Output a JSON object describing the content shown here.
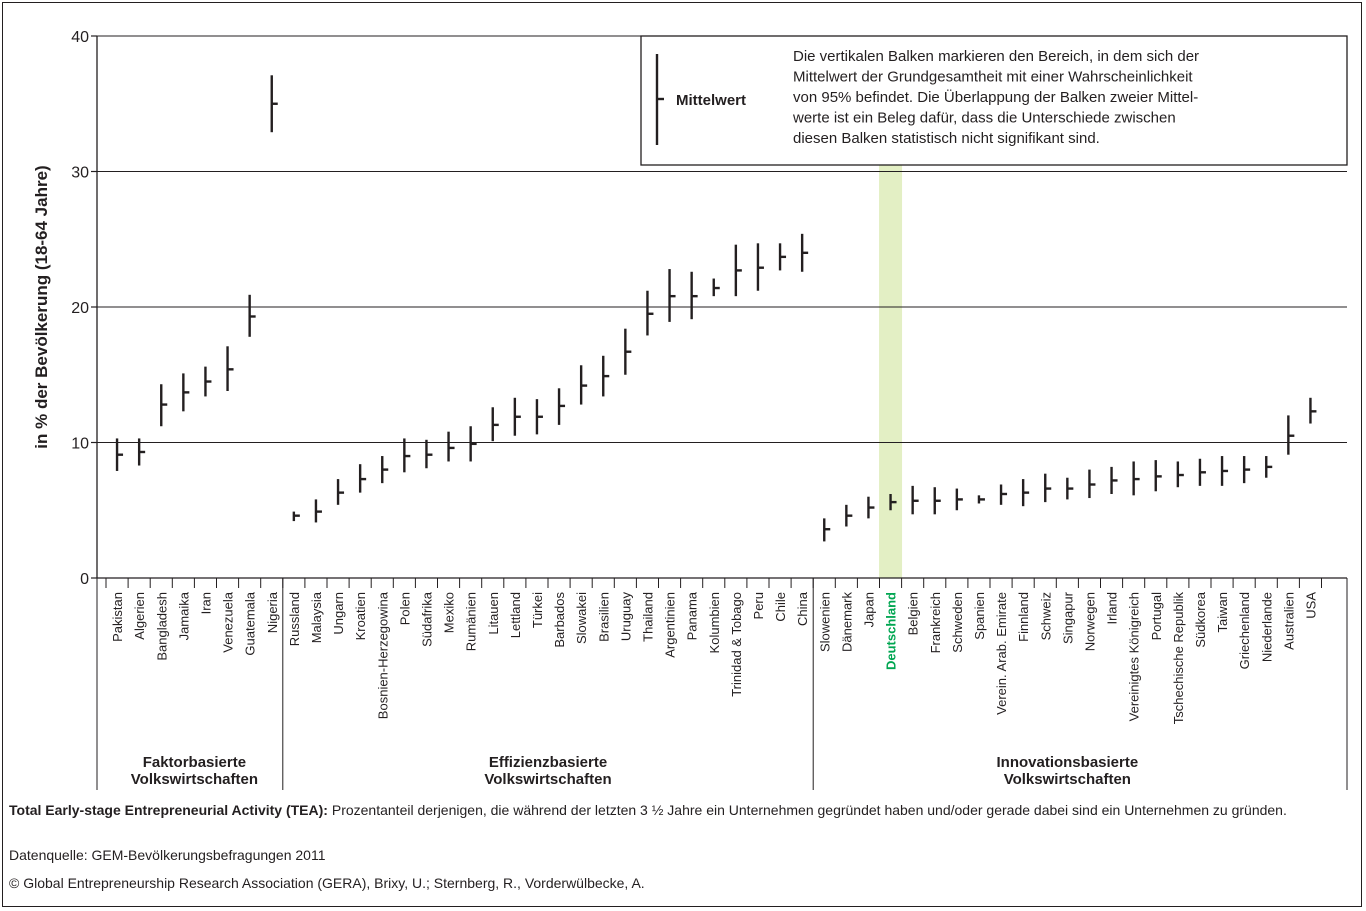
{
  "chart_data": {
    "type": "errorbar",
    "ylabel": "in % der Bevölkerung (18-64 Jahre)",
    "ylim": [
      0,
      40
    ],
    "yticks": [
      "0",
      "10",
      "20",
      "30",
      "40"
    ],
    "grid": true,
    "highlight_category": "Deutschland",
    "highlight_color": "#00a651",
    "highlight_band_color": "#e3efc4",
    "legend": {
      "label": "Mittelwert",
      "text_lines": [
        "Die vertikalen Balken markieren den Bereich, in dem sich der",
        "Mittelwert der Grundgesamtheit mit einer Wahrscheinlichkeit",
        "von 95% befindet. Die Überlappung der Balken zweier Mittel-",
        "werte ist ein Beleg dafür, dass die Unterschiede zwischen",
        "diesen Balken statistisch nicht signifikant sind."
      ],
      "position": "top-right"
    },
    "groups": [
      {
        "name_lines": [
          "Faktorbasierte",
          "Volkswirtschaften"
        ],
        "countries": [
          {
            "name": "Pakistan",
            "mean": 9.1,
            "low": 7.9,
            "high": 10.3
          },
          {
            "name": "Algerien",
            "mean": 9.3,
            "low": 8.3,
            "high": 10.3
          },
          {
            "name": "Bangladesh",
            "mean": 12.8,
            "low": 11.2,
            "high": 14.3
          },
          {
            "name": "Jamaika",
            "mean": 13.7,
            "low": 12.3,
            "high": 15.1
          },
          {
            "name": "Iran",
            "mean": 14.5,
            "low": 13.4,
            "high": 15.6
          },
          {
            "name": "Venezuela",
            "mean": 15.4,
            "low": 13.8,
            "high": 17.1
          },
          {
            "name": "Guatemala",
            "mean": 19.3,
            "low": 17.8,
            "high": 20.9
          },
          {
            "name": "Nigeria",
            "mean": 35.0,
            "low": 32.9,
            "high": 37.1
          }
        ]
      },
      {
        "name_lines": [
          "Effizienzbasierte",
          "Volkswirtschaften"
        ],
        "countries": [
          {
            "name": "Russland",
            "mean": 4.6,
            "low": 4.2,
            "high": 4.9
          },
          {
            "name": "Malaysia",
            "mean": 4.9,
            "low": 4.1,
            "high": 5.8
          },
          {
            "name": "Ungarn",
            "mean": 6.3,
            "low": 5.4,
            "high": 7.3
          },
          {
            "name": "Kroatien",
            "mean": 7.3,
            "low": 6.3,
            "high": 8.4
          },
          {
            "name": "Bosnien-Herzegowina",
            "mean": 8.0,
            "low": 7.0,
            "high": 9.0
          },
          {
            "name": "Polen",
            "mean": 9.0,
            "low": 7.8,
            "high": 10.3
          },
          {
            "name": "Südafrika",
            "mean": 9.1,
            "low": 8.1,
            "high": 10.2
          },
          {
            "name": "Mexiko",
            "mean": 9.6,
            "low": 8.6,
            "high": 10.8
          },
          {
            "name": "Rumänien",
            "mean": 9.9,
            "low": 8.6,
            "high": 11.2
          },
          {
            "name": "Litauen",
            "mean": 11.3,
            "low": 10.1,
            "high": 12.6
          },
          {
            "name": "Lettland",
            "mean": 11.9,
            "low": 10.5,
            "high": 13.3
          },
          {
            "name": "Türkei",
            "mean": 11.9,
            "low": 10.6,
            "high": 13.2
          },
          {
            "name": "Barbados",
            "mean": 12.7,
            "low": 11.3,
            "high": 14.0
          },
          {
            "name": "Slowakei",
            "mean": 14.2,
            "low": 12.8,
            "high": 15.7
          },
          {
            "name": "Brasilien",
            "mean": 14.9,
            "low": 13.4,
            "high": 16.4
          },
          {
            "name": "Uruguay",
            "mean": 16.7,
            "low": 15.0,
            "high": 18.4
          },
          {
            "name": "Thailand",
            "mean": 19.5,
            "low": 17.9,
            "high": 21.2
          },
          {
            "name": "Argentinien",
            "mean": 20.8,
            "low": 18.9,
            "high": 22.8
          },
          {
            "name": "Panama",
            "mean": 20.8,
            "low": 19.1,
            "high": 22.6
          },
          {
            "name": "Kolumbien",
            "mean": 21.4,
            "low": 20.8,
            "high": 22.1
          },
          {
            "name": "Trinidad & Tobago",
            "mean": 22.7,
            "low": 20.8,
            "high": 24.6
          },
          {
            "name": "Peru",
            "mean": 22.9,
            "low": 21.2,
            "high": 24.7
          },
          {
            "name": "Chile",
            "mean": 23.7,
            "low": 22.7,
            "high": 24.7
          },
          {
            "name": "China",
            "mean": 24.0,
            "low": 22.6,
            "high": 25.4
          }
        ]
      },
      {
        "name_lines": [
          "Innovationsbasierte",
          "Volkswirtschaften"
        ],
        "countries": [
          {
            "name": "Slowenien",
            "mean": 3.6,
            "low": 2.7,
            "high": 4.4
          },
          {
            "name": "Dänemark",
            "mean": 4.6,
            "low": 3.8,
            "high": 5.4
          },
          {
            "name": "Japan",
            "mean": 5.2,
            "low": 4.4,
            "high": 6.0
          },
          {
            "name": "Deutschland",
            "mean": 5.6,
            "low": 5.0,
            "high": 6.2
          },
          {
            "name": "Belgien",
            "mean": 5.7,
            "low": 4.7,
            "high": 6.8
          },
          {
            "name": "Frankreich",
            "mean": 5.7,
            "low": 4.7,
            "high": 6.7
          },
          {
            "name": "Schweden",
            "mean": 5.8,
            "low": 5.0,
            "high": 6.6
          },
          {
            "name": "Spanien",
            "mean": 5.8,
            "low": 5.5,
            "high": 6.1
          },
          {
            "name": "Verein. Arab. Emirate",
            "mean": 6.2,
            "low": 5.4,
            "high": 6.9
          },
          {
            "name": "Finnland",
            "mean": 6.3,
            "low": 5.3,
            "high": 7.3
          },
          {
            "name": "Schweiz",
            "mean": 6.6,
            "low": 5.6,
            "high": 7.7
          },
          {
            "name": "Singapur",
            "mean": 6.6,
            "low": 5.8,
            "high": 7.4
          },
          {
            "name": "Norwegen",
            "mean": 6.9,
            "low": 5.9,
            "high": 8.0
          },
          {
            "name": "Irland",
            "mean": 7.2,
            "low": 6.2,
            "high": 8.2
          },
          {
            "name": "Vereinigtes Königreich",
            "mean": 7.3,
            "low": 6.1,
            "high": 8.6
          },
          {
            "name": "Portugal",
            "mean": 7.5,
            "low": 6.4,
            "high": 8.7
          },
          {
            "name": "Tschechische Republik",
            "mean": 7.6,
            "low": 6.7,
            "high": 8.6
          },
          {
            "name": "Südkorea",
            "mean": 7.8,
            "low": 6.8,
            "high": 8.8
          },
          {
            "name": "Taiwan",
            "mean": 7.9,
            "low": 6.8,
            "high": 9.0
          },
          {
            "name": "Griechenland",
            "mean": 8.0,
            "low": 7.0,
            "high": 9.0
          },
          {
            "name": "Niederlande",
            "mean": 8.2,
            "low": 7.4,
            "high": 9.0
          },
          {
            "name": "Australien",
            "mean": 10.5,
            "low": 9.1,
            "high": 12.0
          },
          {
            "name": "USA",
            "mean": 12.3,
            "low": 11.4,
            "high": 13.3
          }
        ]
      }
    ]
  },
  "footer": {
    "definition_bold": "Total Early-stage Entrepreneurial Activity (TEA):",
    "definition_text": " Prozentanteil derjenigen, die während der letzten 3 ½ Jahre ein Unternehmen gegründet haben und/oder gerade dabei sind ein Unternehmen zu gründen.",
    "source": "Datenquelle: GEM-Bevölkerungsbefragungen 2011",
    "copyright": "©  Global Entrepreneurship Research Association (GERA), Brixy, U.; Sternberg, R., Vorderwülbecke, A."
  }
}
